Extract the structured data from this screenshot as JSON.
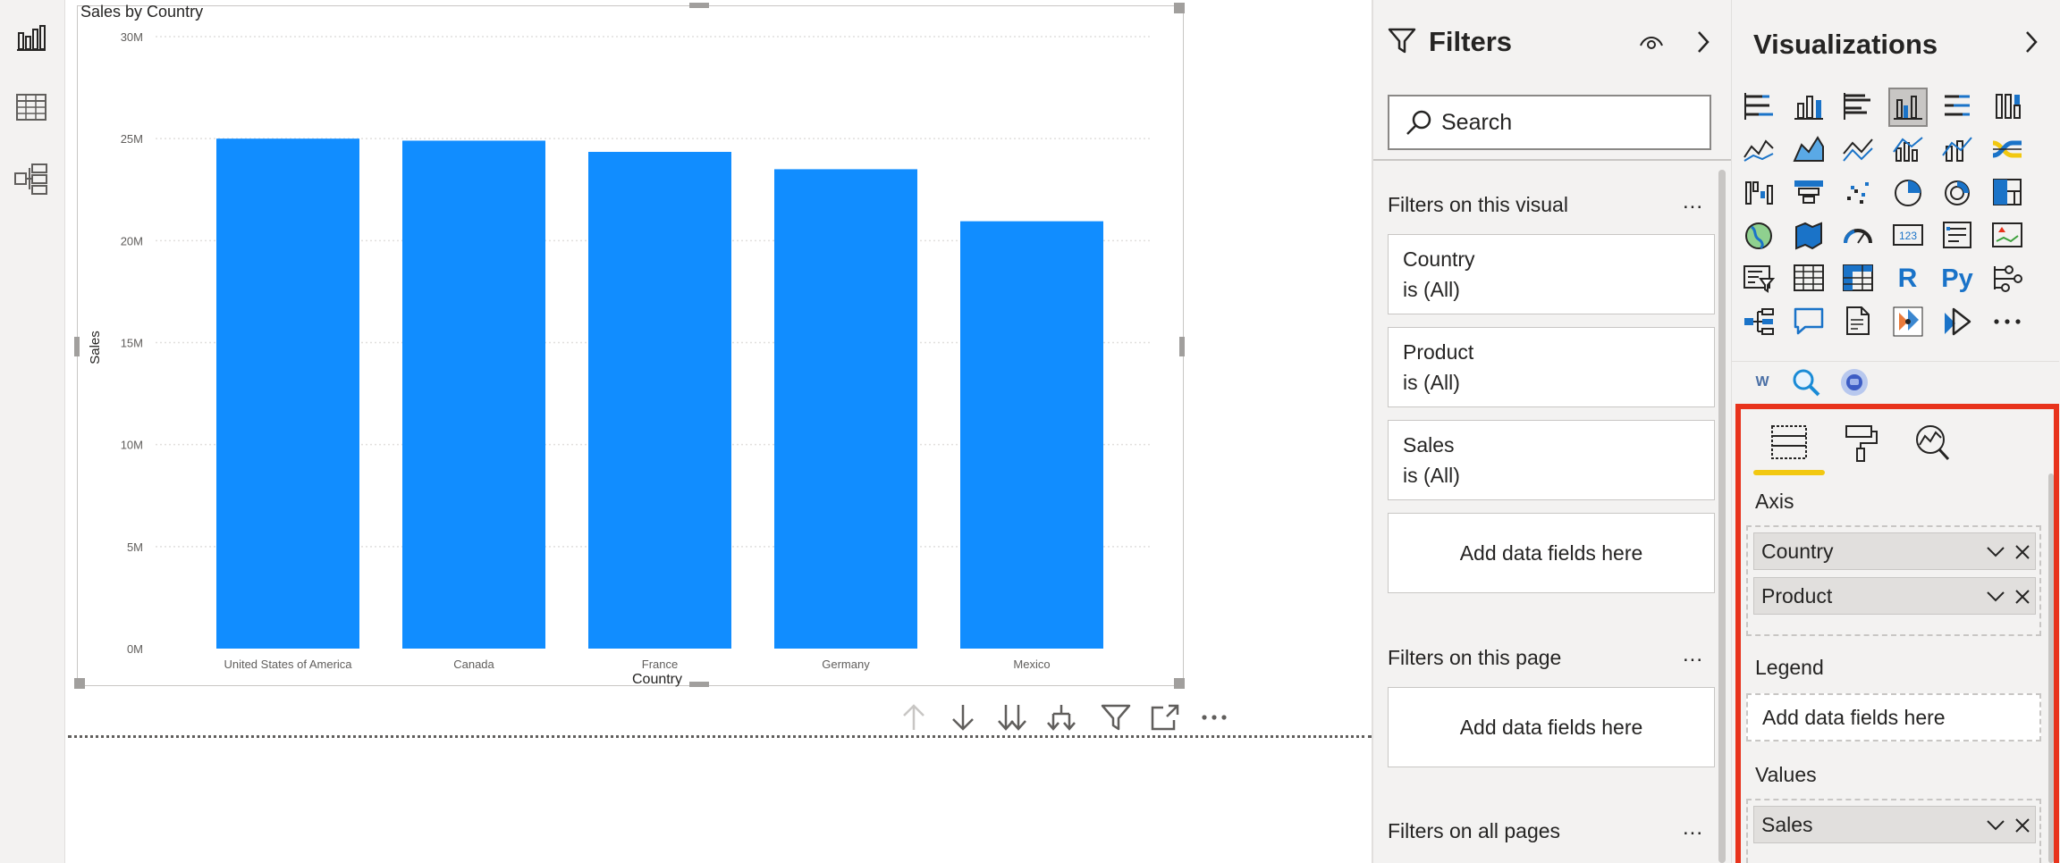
{
  "nav": {
    "items": [
      {
        "name": "report-view",
        "icon": "report-bar-chart-icon"
      },
      {
        "name": "data-view",
        "icon": "table-grid-icon"
      },
      {
        "name": "model-view",
        "icon": "model-diagram-icon"
      }
    ]
  },
  "visual": {
    "toolbar": [
      {
        "name": "drill-up-button",
        "icon": "arrow-up-icon"
      },
      {
        "name": "drill-down-toggle",
        "icon": "arrow-down-icon"
      },
      {
        "name": "next-level-button",
        "icon": "double-arrow-down-icon"
      },
      {
        "name": "expand-next-level-button",
        "icon": "fork-arrow-down-icon"
      },
      {
        "name": "visual-filter-button",
        "icon": "funnel-icon"
      },
      {
        "name": "focus-mode-button",
        "icon": "focus-mode-icon"
      },
      {
        "name": "more-options-button",
        "icon": "more-dots-icon"
      }
    ]
  },
  "chart_data": {
    "type": "bar",
    "title": "Sales by Country",
    "xlabel": "Country",
    "ylabel": "Sales",
    "categories": [
      "United States of America",
      "Canada",
      "France",
      "Germany",
      "Mexico"
    ],
    "values": [
      25000000,
      24900000,
      24350000,
      23500000,
      20950000
    ],
    "ylim": [
      0,
      30000000
    ],
    "yticks": [
      {
        "value": 0,
        "label": "0M"
      },
      {
        "value": 5000000,
        "label": "5M"
      },
      {
        "value": 10000000,
        "label": "10M"
      },
      {
        "value": 15000000,
        "label": "15M"
      },
      {
        "value": 20000000,
        "label": "20M"
      },
      {
        "value": 25000000,
        "label": "25M"
      },
      {
        "value": 30000000,
        "label": "30M"
      }
    ],
    "grid": true,
    "color": "#118dff"
  },
  "filters": {
    "title": "Filters",
    "search_placeholder": "Search",
    "visual_section": "Filters on this visual",
    "visual_filters": [
      {
        "name": "Country",
        "state": "is (All)"
      },
      {
        "name": "Product",
        "state": "is (All)"
      },
      {
        "name": "Sales",
        "state": "is (All)"
      }
    ],
    "add_fields": "Add data fields here",
    "page_section": "Filters on this page",
    "page_add_fields": "Add data fields here",
    "all_pages_section": "Filters on all pages",
    "more": "..."
  },
  "visualizations": {
    "title": "Visualizations",
    "icons": [
      "stacked-bar-icon",
      "stacked-column-icon",
      "clustered-bar-icon",
      "clustered-column-icon",
      "100-stacked-bar-icon",
      "100-stacked-column-icon",
      "line-chart-icon",
      "area-chart-icon",
      "stacked-area-icon",
      "line-clustered-column-icon",
      "line-stacked-column-icon",
      "ribbon-chart-icon",
      "waterfall-chart-icon",
      "funnel-chart-icon",
      "scatter-chart-icon",
      "pie-chart-icon",
      "donut-chart-icon",
      "treemap-icon",
      "map-icon",
      "filled-map-icon",
      "gauge-icon",
      "card-icon",
      "multi-row-card-icon",
      "kpi-icon",
      "slicer-icon",
      "table-icon",
      "matrix-icon",
      "r-visual-icon",
      "python-visual-icon",
      "key-influencers-icon",
      "decomposition-tree-icon",
      "qa-icon",
      "paginated-report-icon",
      "power-apps-icon",
      "power-automate-icon",
      "get-more-visuals-icon"
    ],
    "r_label": "R",
    "py_label": "Py",
    "card_label": "123",
    "more": "...",
    "selected": "clustered-column-icon",
    "custom_visuals": [
      "word-cloud-icon",
      "search-visual-icon",
      "custom-visual-icon"
    ],
    "word_cloud_label": "W",
    "tabs": [
      "fields-tab",
      "format-tab",
      "analytics-tab"
    ],
    "axis_label": "Axis",
    "axis_fields": [
      "Country",
      "Product"
    ],
    "legend_label": "Legend",
    "legend_placeholder": "Add data fields here",
    "values_label": "Values",
    "values_fields": [
      "Sales"
    ],
    "highlight_color": "#e8331c",
    "accent_color": "#f2c811"
  }
}
